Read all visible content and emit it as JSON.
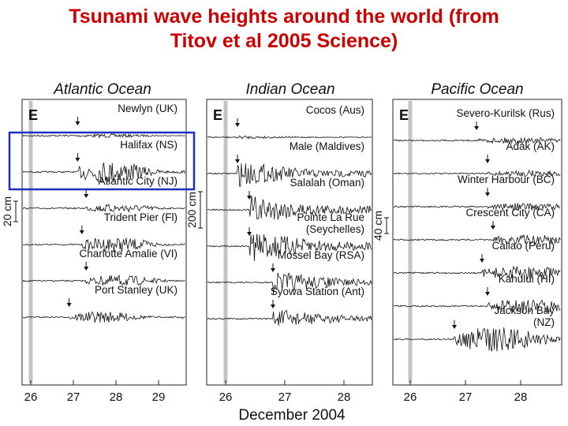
{
  "slide": {
    "title_line1": "Tsunami wave heights around the world (from",
    "title_line2": "Titov et al 2005 Science)"
  },
  "chart_data": {
    "type": "line",
    "xlabel": "December 2004",
    "event_marker": "E",
    "panels": [
      {
        "title": "Atlantic Ocean",
        "xlim": [
          25.8,
          29.6
        ],
        "x_ticks": [
          "26",
          "27",
          "28",
          "29"
        ],
        "scale_bar": "20 cm",
        "series": [
          {
            "name": "Newlyn (UK)",
            "arrival_day": 27.1,
            "relative_amplitude": 0.15
          },
          {
            "name": "Halifax (NS)",
            "arrival_day": 27.1,
            "relative_amplitude": 0.9
          },
          {
            "name": "Atlantic City (NJ)",
            "arrival_day": 27.3,
            "relative_amplitude": 0.35
          },
          {
            "name": "Trident Pier (Fl)",
            "arrival_day": 27.2,
            "relative_amplitude": 0.6
          },
          {
            "name": "Charlotte Amalie  (VI)",
            "arrival_day": 27.3,
            "relative_amplitude": 0.45
          },
          {
            "name": "Port Stanley  (UK)",
            "arrival_day": 26.9,
            "relative_amplitude": 0.45
          }
        ],
        "highlight_box": "Halifax (NS)"
      },
      {
        "title": "Indian Ocean",
        "xlim": [
          25.8,
          28.6
        ],
        "x_ticks": [
          "26",
          "27",
          "28"
        ],
        "scale_bar": "200 cm",
        "series": [
          {
            "name": "Cocos (Aus)",
            "arrival_day": 26.2,
            "relative_amplitude": 0.1
          },
          {
            "name": "Male (Maldives)",
            "arrival_day": 26.2,
            "relative_amplitude": 0.8
          },
          {
            "name": "Salalah (Oman)",
            "arrival_day": 26.4,
            "relative_amplitude": 0.9
          },
          {
            "name": "Pointe La Rue\n(Seychelles)",
            "arrival_day": 26.4,
            "relative_amplitude": 1.0
          },
          {
            "name": "Mossel Bay (RSA)",
            "arrival_day": 26.8,
            "relative_amplitude": 0.7
          },
          {
            "name": "Syowa Station (Ant)",
            "arrival_day": 26.8,
            "relative_amplitude": 0.6
          }
        ]
      },
      {
        "title": "Pacific Ocean",
        "xlim": [
          25.8,
          28.8
        ],
        "x_ticks": [
          "26",
          "27",
          "28"
        ],
        "scale_bar": "40 cm",
        "series": [
          {
            "name": "Severo-Kurilsk  (Rus)",
            "arrival_day": 27.2,
            "relative_amplitude": 0.25
          },
          {
            "name": "Adak  (AK)",
            "arrival_day": 27.4,
            "relative_amplitude": 0.25
          },
          {
            "name": "Winter Harbour (BC)",
            "arrival_day": 27.4,
            "relative_amplitude": 0.3
          },
          {
            "name": "Crescent City (CA)",
            "arrival_day": 27.5,
            "relative_amplitude": 0.45
          },
          {
            "name": "Callao (Peru)",
            "arrival_day": 27.3,
            "relative_amplitude": 0.55
          },
          {
            "name": "Kahului (HI)",
            "arrival_day": 27.4,
            "relative_amplitude": 0.55
          },
          {
            "name": "Jackson Bay\n(NZ)",
            "arrival_day": 26.8,
            "relative_amplitude": 1.0
          }
        ]
      }
    ]
  }
}
